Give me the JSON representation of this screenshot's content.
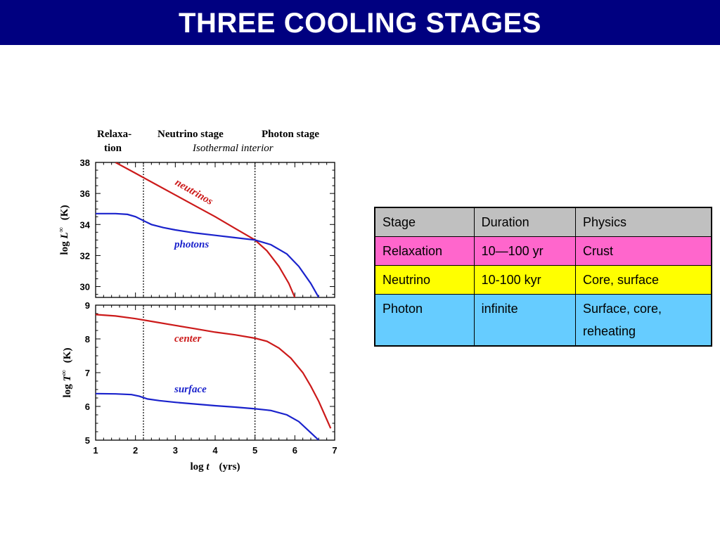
{
  "slide": {
    "title": "THREE COOLING STAGES"
  },
  "table": {
    "headers": [
      "Stage",
      "Duration",
      "Physics"
    ],
    "header_color": "#c0c0c0",
    "rows": [
      {
        "cells": [
          "Relaxation",
          "10—100 yr",
          "Crust"
        ],
        "color": "#ff66cc"
      },
      {
        "cells": [
          "Neutrino",
          "10-100 kyr",
          "Core, surface"
        ],
        "color": "#ffff00"
      },
      {
        "cells": [
          "Photon",
          "infinite",
          "Surface, core, reheating"
        ],
        "color": "#66ccff"
      }
    ]
  },
  "chart_data": [
    {
      "type": "line",
      "stages": {
        "relaxation": {
          "line1": "Relaxa-",
          "line2": "tion"
        },
        "neutrino": "Neutrino stage",
        "photon": "Photon stage",
        "subtitle": "Isothermal interior"
      },
      "stage_boundaries": [
        2.2,
        5.0
      ],
      "xlim": [
        1,
        7
      ],
      "ylim": [
        29.3,
        38
      ],
      "yticks": [
        30,
        32,
        34,
        36,
        38
      ],
      "ylabel": {
        "prefix": "log ",
        "symbol": "L",
        "sup": "∞",
        "unit": "(K)"
      },
      "series": [
        {
          "name": "neutrinos",
          "color": "#cc1a1a",
          "x": [
            1.5,
            2.0,
            2.5,
            3.0,
            3.5,
            4.0,
            4.5,
            5.0,
            5.3,
            5.6,
            5.85,
            6.0
          ],
          "y": [
            38.0,
            37.3,
            36.6,
            35.9,
            35.2,
            34.5,
            33.75,
            33.0,
            32.3,
            31.3,
            30.2,
            29.3
          ]
        },
        {
          "name": "photons",
          "color": "#1a22cc",
          "x": [
            1.0,
            1.5,
            1.8,
            2.0,
            2.2,
            2.4,
            2.7,
            3.0,
            3.5,
            4.0,
            4.5,
            5.0,
            5.4,
            5.8,
            6.1,
            6.4,
            6.6
          ],
          "y": [
            34.7,
            34.7,
            34.65,
            34.5,
            34.25,
            34.0,
            33.8,
            33.65,
            33.45,
            33.3,
            33.15,
            33.0,
            32.7,
            32.1,
            31.3,
            30.2,
            29.3
          ]
        }
      ]
    },
    {
      "type": "line",
      "xlim": [
        1,
        7
      ],
      "ylim": [
        5,
        9
      ],
      "xticks": [
        1,
        2,
        3,
        4,
        5,
        6,
        7
      ],
      "yticks": [
        5,
        6,
        7,
        8,
        9
      ],
      "stage_boundaries": [
        2.2,
        5.0
      ],
      "xlabel": {
        "prefix": "log ",
        "symbol": "t",
        "unit": "(yrs)"
      },
      "ylabel": {
        "prefix": "log ",
        "symbol": "T",
        "sup": "∞",
        "unit": "(K)"
      },
      "series": [
        {
          "name": "center",
          "color": "#cc1a1a",
          "x": [
            1.0,
            1.5,
            2.0,
            2.5,
            3.0,
            3.5,
            4.0,
            4.5,
            5.0,
            5.3,
            5.6,
            5.9,
            6.2,
            6.4,
            6.6,
            6.75,
            6.9
          ],
          "y": [
            8.72,
            8.68,
            8.6,
            8.5,
            8.4,
            8.3,
            8.2,
            8.12,
            8.02,
            7.93,
            7.73,
            7.43,
            7.0,
            6.6,
            6.15,
            5.75,
            5.35
          ]
        },
        {
          "name": "surface",
          "color": "#1a22cc",
          "x": [
            1.0,
            1.5,
            1.9,
            2.1,
            2.3,
            2.6,
            3.0,
            3.5,
            4.0,
            4.5,
            5.0,
            5.4,
            5.8,
            6.1,
            6.4,
            6.6
          ],
          "y": [
            6.38,
            6.37,
            6.35,
            6.3,
            6.22,
            6.17,
            6.12,
            6.07,
            6.02,
            5.98,
            5.93,
            5.88,
            5.75,
            5.55,
            5.22,
            5.0
          ]
        }
      ]
    }
  ]
}
